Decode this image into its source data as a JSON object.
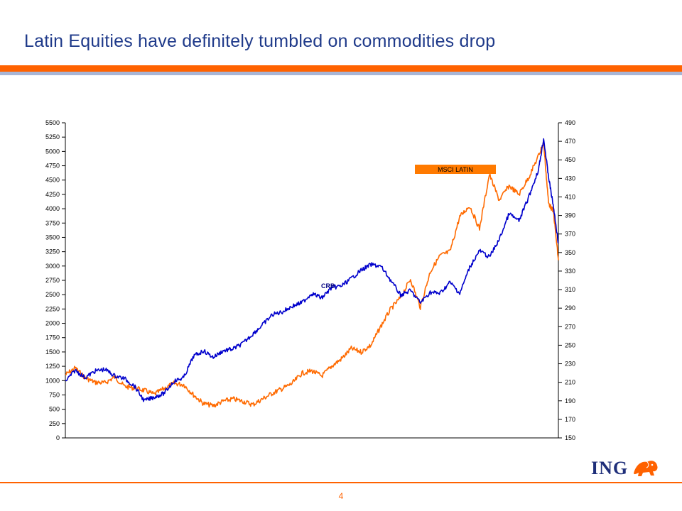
{
  "page": {
    "title": "Latin Equities have definitely tumbled on commodities drop",
    "page_number": "4",
    "logo_text": "ING"
  },
  "colors": {
    "accent_orange": "#ff6200",
    "title_blue": "#1f3a8a",
    "crb_line": "#0000cc",
    "msci_line": "#ff6a00",
    "legend_box": "#ff7a00"
  },
  "icons": {
    "logo": "lion-icon"
  },
  "chart_data": {
    "type": "line",
    "title": "",
    "xlabel": "",
    "y_left": {
      "range": [
        0,
        5500
      ],
      "ticks": [
        0,
        250,
        500,
        750,
        1000,
        1250,
        1500,
        1750,
        2000,
        2250,
        2500,
        2750,
        3000,
        3250,
        3500,
        3750,
        4000,
        4250,
        4500,
        4750,
        5000,
        5250,
        5500
      ]
    },
    "y_right": {
      "range": [
        150,
        490
      ],
      "ticks": [
        150,
        170,
        190,
        210,
        230,
        250,
        270,
        290,
        310,
        330,
        350,
        370,
        390,
        410,
        430,
        450,
        470,
        490
      ]
    },
    "x_range": [
      0,
      100
    ],
    "grid": false,
    "series": [
      {
        "name": "MSCI LATIN",
        "axis": "left",
        "label_style": "boxed",
        "x": [
          0,
          2,
          4,
          6,
          8,
          10,
          12,
          14,
          16,
          18,
          20,
          22,
          24,
          26,
          28,
          30,
          32,
          34,
          36,
          38,
          40,
          42,
          44,
          46,
          48,
          50,
          52,
          54,
          56,
          58,
          60,
          62,
          64,
          66,
          68,
          70,
          72,
          74,
          76,
          78,
          80,
          82,
          84,
          86,
          88,
          90,
          92,
          94,
          96,
          97,
          98,
          99,
          100
        ],
        "values": [
          1100,
          1220,
          1050,
          970,
          960,
          1060,
          900,
          870,
          830,
          760,
          860,
          950,
          930,
          750,
          600,
          560,
          640,
          680,
          640,
          580,
          680,
          780,
          860,
          950,
          1130,
          1170,
          1080,
          1250,
          1380,
          1560,
          1500,
          1620,
          1950,
          2250,
          2450,
          2770,
          2280,
          2900,
          3180,
          3250,
          3860,
          4050,
          3650,
          4600,
          4150,
          4400,
          4250,
          4550,
          4930,
          5150,
          4100,
          3950,
          3100
        ]
      },
      {
        "name": "CRB",
        "axis": "right",
        "label_style": "plain",
        "x": [
          0,
          2,
          4,
          6,
          8,
          10,
          12,
          14,
          16,
          18,
          20,
          22,
          24,
          26,
          28,
          30,
          32,
          34,
          36,
          38,
          40,
          42,
          44,
          46,
          48,
          50,
          52,
          54,
          56,
          58,
          60,
          62,
          64,
          66,
          68,
          70,
          72,
          74,
          76,
          78,
          80,
          82,
          84,
          86,
          88,
          90,
          92,
          94,
          96,
          97,
          98,
          99,
          100
        ],
        "values": [
          211,
          223,
          215,
          222,
          224,
          217,
          214,
          206,
          190,
          194,
          198,
          211,
          215,
          238,
          244,
          237,
          244,
          246,
          252,
          262,
          272,
          283,
          286,
          292,
          296,
          306,
          301,
          312,
          314,
          322,
          331,
          337,
          335,
          320,
          304,
          309,
          296,
          307,
          306,
          318,
          306,
          334,
          352,
          345,
          364,
          392,
          384,
          410,
          440,
          473,
          432,
          399,
          360
        ]
      }
    ]
  }
}
